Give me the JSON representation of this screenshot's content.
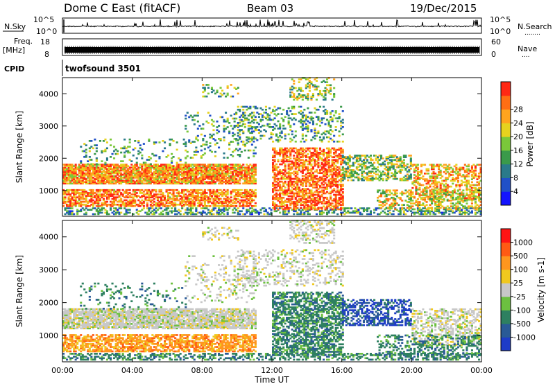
{
  "header": {
    "station": "Dome C East (fitACF)",
    "beam": "Beam 03",
    "date": "19/Dec/2015"
  },
  "panels": {
    "nsky": {
      "label": "N.Sky",
      "left_ticks": [
        "10^5",
        "10^0"
      ],
      "right_ticks": [
        "10^5",
        "10^0"
      ],
      "right_label": "N.Search",
      "right_dots": "........"
    },
    "freq": {
      "label_line1": "Freq.",
      "label_line2": "[MHz]",
      "left_ticks": [
        "18",
        "8"
      ],
      "right_ticks": [
        "60",
        "0"
      ],
      "right_label": "Nave",
      "right_dots": "...."
    },
    "cpid": {
      "label": "CPID",
      "value": "twofsound 3501"
    }
  },
  "chart_data": [
    {
      "type": "heatmap",
      "name": "power",
      "ylabel": "Slant Range [km]",
      "yticks": [
        "1000",
        "2000",
        "3000",
        "4000"
      ],
      "ylim": [
        200,
        4500
      ],
      "xlim": [
        "00:00",
        "24:00"
      ],
      "colorbar": {
        "label": "Power [dB]",
        "ticks": [
          "4",
          "8",
          "12",
          "16",
          "20",
          "24",
          "28"
        ],
        "colors": [
          "#1414ff",
          "#2050c8",
          "#2a7a8a",
          "#3a9a4a",
          "#7ac83a",
          "#e6d21e",
          "#ffa41e",
          "#ff6e14",
          "#ff2814"
        ]
      }
    },
    {
      "type": "heatmap",
      "name": "velocity",
      "ylabel": "Slant Range [km]",
      "yticks": [
        "1000",
        "2000",
        "3000",
        "4000"
      ],
      "ylim": [
        200,
        4500
      ],
      "xlim": [
        "00:00",
        "24:00"
      ],
      "colorbar": {
        "label": "Velocity [m s-1]",
        "ticks": [
          "1000",
          "500",
          "100",
          "25",
          "-25",
          "-100",
          "-500",
          "-1000"
        ],
        "colors": [
          "#1e3cc8",
          "#2a5a96",
          "#2e8060",
          "#6cc040",
          "#c8c8c8",
          "#f0c81e",
          "#ff961e",
          "#ff5a14",
          "#ff1414"
        ]
      }
    }
  ],
  "xaxis": {
    "ticks": [
      "00:00",
      "04:00",
      "08:00",
      "12:00",
      "16:00",
      "20:00",
      "00:00"
    ],
    "label": "Time UT"
  }
}
